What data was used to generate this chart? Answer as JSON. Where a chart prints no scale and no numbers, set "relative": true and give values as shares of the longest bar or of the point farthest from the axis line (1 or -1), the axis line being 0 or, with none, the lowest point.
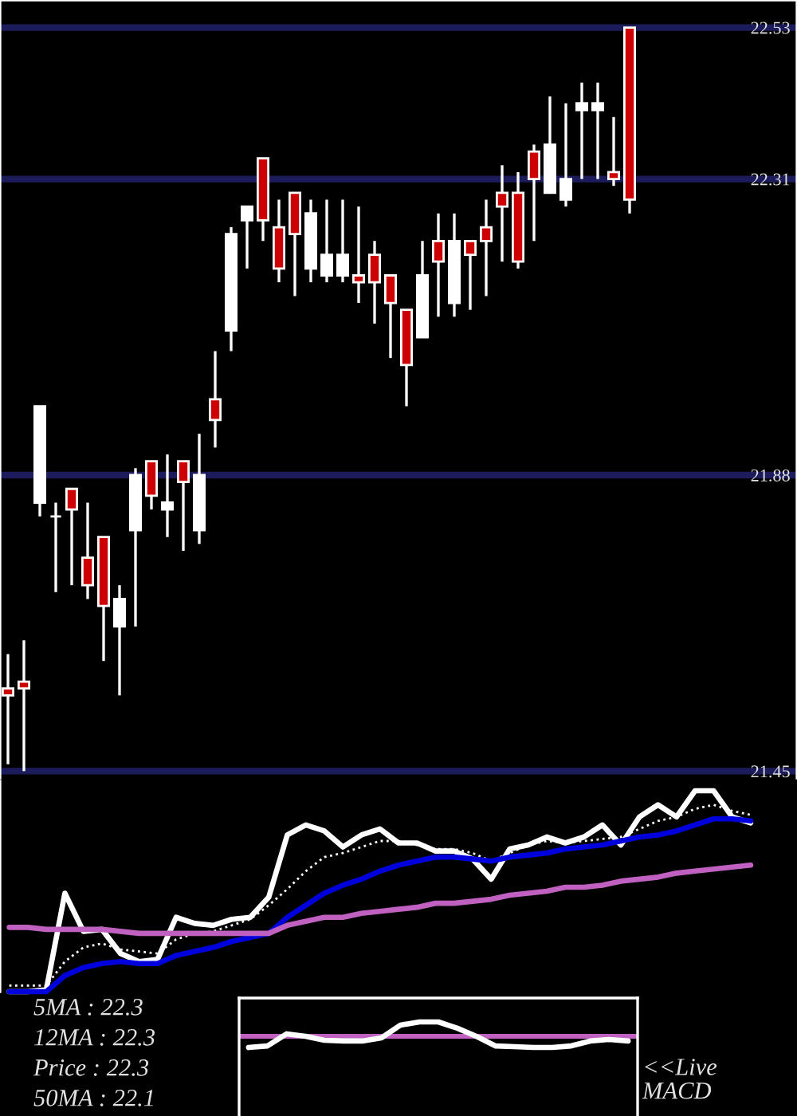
{
  "chart_data": [
    {
      "type": "candlestick",
      "categories": [
        null,
        null,
        null,
        null,
        null,
        null,
        null,
        null,
        null,
        null,
        null,
        null,
        null,
        null,
        null,
        null,
        null,
        null,
        null,
        null,
        null,
        null,
        null,
        null,
        null,
        null,
        null,
        null,
        null,
        null,
        null,
        null,
        null,
        null,
        null,
        null,
        null,
        null,
        null,
        null,
        null,
        null,
        null,
        null,
        null,
        null,
        null,
        null,
        null,
        null
      ],
      "ohlc": [
        [
          21.57,
          21.62,
          21.46,
          21.56
        ],
        [
          21.58,
          21.64,
          21.45,
          21.57
        ],
        [
          21.84,
          21.98,
          21.82,
          21.98
        ],
        [
          21.82,
          21.84,
          21.71,
          21.82
        ],
        [
          21.86,
          21.86,
          21.72,
          21.83
        ],
        [
          21.76,
          21.84,
          21.7,
          21.72
        ],
        [
          21.79,
          21.79,
          21.61,
          21.69
        ],
        [
          21.66,
          21.72,
          21.56,
          21.7
        ],
        [
          21.8,
          21.89,
          21.66,
          21.88
        ],
        [
          21.9,
          21.9,
          21.83,
          21.85
        ],
        [
          21.83,
          21.91,
          21.79,
          21.84
        ],
        [
          21.9,
          21.9,
          21.77,
          21.87
        ],
        [
          21.8,
          21.94,
          21.78,
          21.88
        ],
        [
          21.99,
          22.06,
          21.92,
          21.96
        ],
        [
          22.09,
          22.24,
          22.06,
          22.23
        ],
        [
          22.25,
          22.27,
          22.18,
          22.27
        ],
        [
          22.34,
          22.34,
          22.22,
          22.25
        ],
        [
          22.24,
          22.28,
          22.16,
          22.18
        ],
        [
          22.29,
          22.29,
          22.14,
          22.23
        ],
        [
          22.18,
          22.28,
          22.16,
          22.26
        ],
        [
          22.17,
          22.28,
          22.16,
          22.2
        ],
        [
          22.17,
          22.28,
          22.16,
          22.2
        ],
        [
          22.17,
          22.27,
          22.13,
          22.16
        ],
        [
          22.2,
          22.22,
          22.1,
          22.16
        ],
        [
          22.17,
          22.17,
          22.05,
          22.13
        ],
        [
          22.12,
          22.12,
          21.98,
          22.04
        ],
        [
          22.08,
          22.22,
          22.08,
          22.17
        ],
        [
          22.22,
          22.26,
          22.11,
          22.19
        ],
        [
          22.13,
          22.26,
          22.11,
          22.22
        ],
        [
          22.22,
          22.22,
          22.12,
          22.2
        ],
        [
          22.24,
          22.28,
          22.14,
          22.22
        ],
        [
          22.29,
          22.33,
          22.19,
          22.27
        ],
        [
          22.29,
          22.32,
          22.18,
          22.19
        ],
        [
          22.35,
          22.36,
          22.22,
          22.31
        ],
        [
          22.29,
          22.43,
          22.29,
          22.36
        ],
        [
          22.28,
          22.42,
          22.27,
          22.31
        ],
        [
          22.41,
          22.45,
          22.31,
          22.42
        ],
        [
          22.41,
          22.45,
          22.31,
          22.42
        ],
        [
          22.32,
          22.4,
          22.3,
          22.31
        ],
        [
          22.53,
          22.53,
          22.26,
          22.28
        ],
        null,
        null,
        null,
        null,
        null,
        null,
        null,
        null,
        null,
        null
      ],
      "colors": [
        "#cc0000",
        "#cc0000",
        "#ffffff",
        "#ffffff",
        "#cc0000",
        "#cc0000",
        "#cc0000",
        "#ffffff",
        "#ffffff",
        "#cc0000",
        "#ffffff",
        "#cc0000",
        "#ffffff",
        "#cc0000",
        "#ffffff",
        "#ffffff",
        "#cc0000",
        "#cc0000",
        "#cc0000",
        "#ffffff",
        "#ffffff",
        "#ffffff",
        "#cc0000",
        "#cc0000",
        "#cc0000",
        "#cc0000",
        "#ffffff",
        "#cc0000",
        "#ffffff",
        "#cc0000",
        "#cc0000",
        "#cc0000",
        "#cc0000",
        "#cc0000",
        "#ffffff",
        "#ffffff",
        "#ffffff",
        "#ffffff",
        "#cc0000",
        "#cc0000",
        null,
        null,
        null,
        null,
        null,
        null,
        null,
        null,
        null,
        null
      ],
      "ylim": [
        21.44,
        22.57
      ],
      "yticks": [
        21.45,
        21.88,
        22.31,
        22.53
      ],
      "grid": "y",
      "tick_labels": "y"
    },
    {
      "type": "line",
      "relative": true,
      "categories": [
        null,
        null,
        null,
        null,
        null,
        null,
        null,
        null,
        null,
        null,
        null,
        null,
        null,
        null,
        null,
        null,
        null,
        null,
        null,
        null,
        null,
        null,
        null,
        null,
        null,
        null,
        null,
        null,
        null,
        null,
        null,
        null,
        null,
        null,
        null,
        null,
        null,
        null,
        null,
        null,
        null,
        null,
        null
      ],
      "series": [
        {
          "color": "#ffffff",
          "values": [
            0.0,
            0.0,
            0.01,
            0.49,
            0.3,
            0.31,
            0.19,
            0.15,
            0.16,
            0.37,
            0.34,
            0.33,
            0.36,
            0.37,
            0.47,
            0.78,
            0.83,
            0.8,
            0.72,
            0.78,
            0.81,
            0.74,
            0.74,
            0.7,
            0.7,
            0.66,
            0.56,
            0.71,
            0.73,
            0.77,
            0.74,
            0.77,
            0.83,
            0.73,
            0.87,
            0.93,
            0.87,
            1.0,
            1.0,
            0.87,
            0.84,
            null,
            null
          ]
        },
        {
          "color": "#ffffff",
          "line_style": "dotted",
          "values": [
            0.03,
            0.03,
            0.03,
            0.15,
            0.22,
            0.24,
            0.21,
            0.2,
            0.19,
            0.26,
            0.29,
            0.3,
            0.33,
            0.36,
            0.43,
            0.51,
            0.6,
            0.67,
            0.69,
            0.72,
            0.75,
            0.75,
            0.73,
            0.71,
            0.71,
            0.69,
            0.65,
            0.69,
            0.73,
            0.75,
            0.74,
            0.75,
            0.76,
            0.77,
            0.81,
            0.85,
            0.87,
            0.91,
            0.93,
            0.9,
            0.88,
            null,
            null
          ]
        },
        {
          "color": "#0000dd",
          "values": [
            0.0,
            0.0,
            0.0,
            0.08,
            0.12,
            0.14,
            0.15,
            0.14,
            0.14,
            0.18,
            0.2,
            0.22,
            0.25,
            0.27,
            0.29,
            0.37,
            0.43,
            0.49,
            0.53,
            0.56,
            0.6,
            0.63,
            0.65,
            0.67,
            0.67,
            0.66,
            0.65,
            0.67,
            0.68,
            0.69,
            0.71,
            0.72,
            0.73,
            0.75,
            0.77,
            0.78,
            0.8,
            0.83,
            0.86,
            0.86,
            0.85,
            null,
            null
          ]
        },
        {
          "color": "#c060c0",
          "values": [
            0.32,
            0.32,
            0.31,
            0.31,
            0.31,
            0.31,
            0.3,
            0.29,
            0.29,
            0.29,
            0.29,
            0.29,
            0.29,
            0.29,
            0.29,
            0.33,
            0.35,
            0.37,
            0.37,
            0.39,
            0.4,
            0.41,
            0.42,
            0.44,
            0.44,
            0.45,
            0.46,
            0.48,
            0.49,
            0.5,
            0.52,
            0.52,
            0.53,
            0.55,
            0.56,
            0.57,
            0.59,
            0.6,
            0.61,
            0.62,
            0.63,
            null,
            null
          ]
        }
      ],
      "annotations": [
        "5MA : 22.3",
        "12MA : 22.3",
        "Price : 22.3",
        "50MA : 22.1"
      ]
    },
    {
      "type": "line",
      "relative": true,
      "categories": [
        null,
        null,
        null,
        null,
        null,
        null,
        null,
        null,
        null,
        null,
        null,
        null,
        null,
        null,
        null,
        null,
        null,
        null,
        null,
        null,
        null
      ],
      "series": [
        {
          "color": "#ffffff",
          "values": [
            -0.78,
            -0.67,
            0.17,
            0.0,
            -0.28,
            -0.33,
            -0.33,
            -0.11,
            0.78,
            1.0,
            1.0,
            0.56,
            0.0,
            -0.67,
            -0.72,
            -0.78,
            -0.78,
            -0.67,
            -0.33,
            -0.22,
            -0.33
          ]
        }
      ],
      "ref_lines": [
        {
          "axis": "y",
          "value": 0,
          "color": "#c060c0"
        }
      ],
      "annotations": [
        "<<Live MACD"
      ]
    }
  ]
}
